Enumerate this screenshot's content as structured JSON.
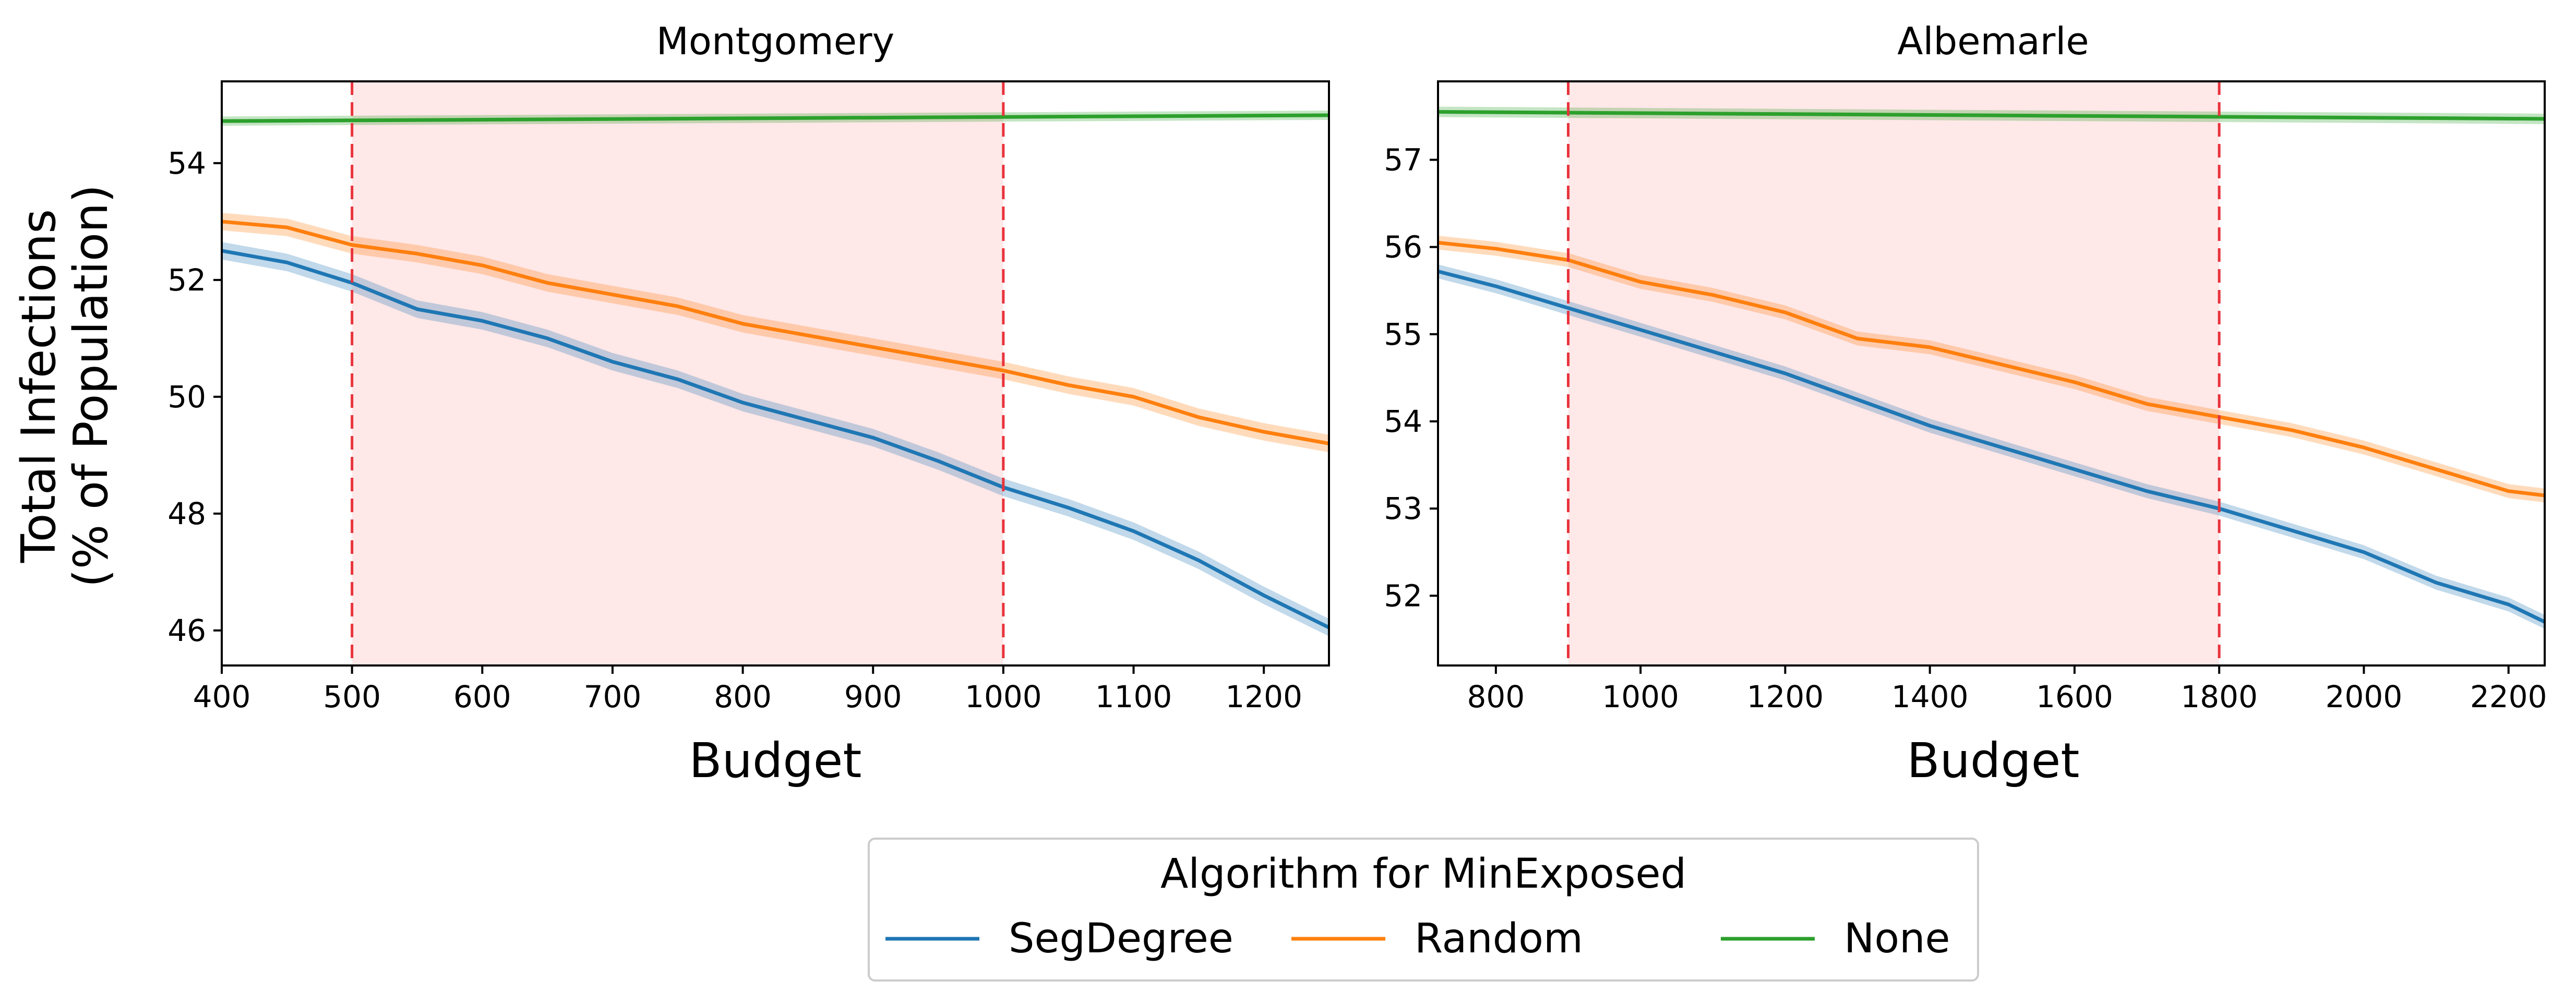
{
  "shared": {
    "ylabel_line1": "Total Infections",
    "ylabel_line2": "(% of Population)"
  },
  "legend": {
    "title": "Algorithm for MinExposed",
    "placement": "bottom-center",
    "entries": [
      {
        "name": "SegDegree",
        "color": "#1f77b4"
      },
      {
        "name": "Random",
        "color": "#ff7f0e"
      },
      {
        "name": "None",
        "color": "#2ca02c"
      }
    ]
  },
  "chart_data": [
    {
      "type": "line",
      "title": "Montgomery",
      "xlabel": "Budget",
      "xlim": [
        400,
        1250
      ],
      "ylim": [
        45.4,
        55.4
      ],
      "xticks": [
        400,
        500,
        600,
        700,
        800,
        900,
        1000,
        1100,
        1200
      ],
      "yticks": [
        46,
        48,
        50,
        52,
        54
      ],
      "grid": false,
      "highlight_band": {
        "x0": 500,
        "x1": 1000,
        "color": "#ff0000"
      },
      "vlines": [
        500,
        1000
      ],
      "series": [
        {
          "name": "SegDegree",
          "color": "#1f77b4",
          "band": 0.15,
          "x": [
            400,
            450,
            500,
            550,
            600,
            650,
            700,
            750,
            800,
            850,
            900,
            950,
            1000,
            1050,
            1100,
            1150,
            1200,
            1250
          ],
          "y": [
            52.5,
            52.3,
            51.95,
            51.5,
            51.3,
            51.0,
            50.6,
            50.3,
            49.9,
            49.6,
            49.3,
            48.9,
            48.45,
            48.1,
            47.7,
            47.2,
            46.6,
            46.05
          ]
        },
        {
          "name": "Random",
          "color": "#ff7f0e",
          "band": 0.15,
          "x": [
            400,
            450,
            500,
            550,
            600,
            650,
            700,
            750,
            800,
            850,
            900,
            950,
            1000,
            1050,
            1100,
            1150,
            1200,
            1250
          ],
          "y": [
            53.0,
            52.9,
            52.6,
            52.45,
            52.25,
            51.95,
            51.75,
            51.55,
            51.25,
            51.05,
            50.85,
            50.65,
            50.45,
            50.2,
            50.0,
            49.65,
            49.4,
            49.2
          ]
        },
        {
          "name": "None",
          "color": "#2ca02c",
          "band": 0.08,
          "x": [
            400,
            1250
          ],
          "y": [
            54.72,
            54.82
          ]
        }
      ]
    },
    {
      "type": "line",
      "title": "Albemarle",
      "xlabel": "Budget",
      "xlim": [
        720,
        2250
      ],
      "ylim": [
        51.2,
        57.9
      ],
      "xticks": [
        800,
        1000,
        1200,
        1400,
        1600,
        1800,
        2000,
        2200
      ],
      "yticks": [
        52,
        53,
        54,
        55,
        56,
        57
      ],
      "grid": false,
      "highlight_band": {
        "x0": 900,
        "x1": 1800,
        "color": "#ff0000"
      },
      "vlines": [
        900,
        1800
      ],
      "series": [
        {
          "name": "SegDegree",
          "color": "#1f77b4",
          "band": 0.08,
          "x": [
            720,
            800,
            900,
            1000,
            1100,
            1200,
            1300,
            1400,
            1500,
            1600,
            1700,
            1800,
            1900,
            2000,
            2100,
            2200,
            2250
          ],
          "y": [
            55.72,
            55.55,
            55.3,
            55.05,
            54.8,
            54.55,
            54.25,
            53.95,
            53.7,
            53.45,
            53.2,
            53.0,
            52.75,
            52.5,
            52.15,
            51.9,
            51.7
          ]
        },
        {
          "name": "Random",
          "color": "#ff7f0e",
          "band": 0.08,
          "x": [
            720,
            800,
            900,
            1000,
            1100,
            1200,
            1300,
            1400,
            1500,
            1600,
            1700,
            1800,
            1900,
            2000,
            2100,
            2200,
            2250
          ],
          "y": [
            56.05,
            55.98,
            55.85,
            55.6,
            55.45,
            55.25,
            54.95,
            54.85,
            54.65,
            54.45,
            54.2,
            54.05,
            53.9,
            53.7,
            53.45,
            53.2,
            53.15
          ]
        },
        {
          "name": "None",
          "color": "#2ca02c",
          "band": 0.06,
          "x": [
            720,
            2250
          ],
          "y": [
            57.55,
            57.47
          ]
        }
      ]
    }
  ]
}
